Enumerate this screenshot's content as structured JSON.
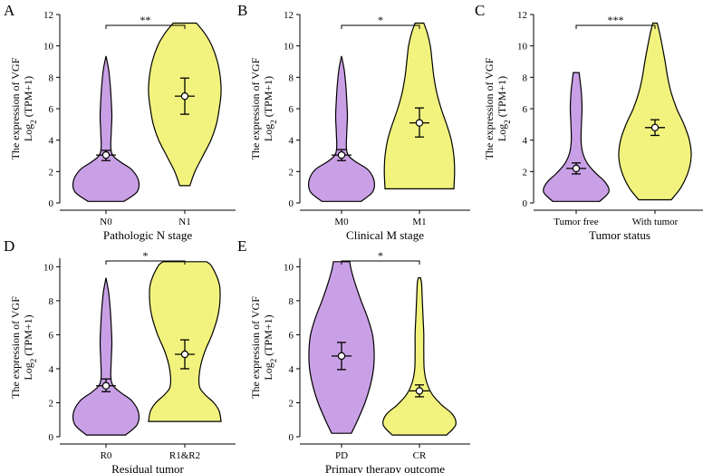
{
  "colors": {
    "group1": "#c9a0e6",
    "group2": "#f2f37e",
    "stroke": "#000000",
    "point": "#ffffff"
  },
  "chart_data": [
    {
      "panel": "A",
      "type": "violin",
      "ylabel_line1": "The expression  of VGF",
      "ylabel_line2_prefix": "Log",
      "ylabel_line2_sub": "2",
      "ylabel_line2_suffix": " (TPM+1)",
      "xlabel": "Pathologic N stage",
      "ylim": [
        0,
        12
      ],
      "yticks": [
        0,
        2,
        4,
        6,
        8,
        10,
        12
      ],
      "significance": "**",
      "groups": [
        {
          "label": "N0",
          "min": 0.1,
          "max": 9.35,
          "mean": 3.05,
          "ci_low": 2.7,
          "ci_high": 3.35,
          "profile": [
            [
              0.1,
              0.55
            ],
            [
              0.7,
              0.95
            ],
            [
              1.4,
              1.0
            ],
            [
              2.1,
              0.8
            ],
            [
              2.6,
              0.45
            ],
            [
              3.0,
              0.22
            ],
            [
              3.5,
              0.15
            ],
            [
              4.5,
              0.16
            ],
            [
              5.5,
              0.18
            ],
            [
              6.5,
              0.16
            ],
            [
              7.5,
              0.13
            ],
            [
              8.5,
              0.08
            ],
            [
              9.35,
              0
            ]
          ]
        },
        {
          "label": "N1",
          "min": 1.1,
          "max": 11.45,
          "mean": 6.8,
          "ci_low": 5.65,
          "ci_high": 7.95,
          "profile": [
            [
              1.1,
              0.14
            ],
            [
              2.0,
              0.28
            ],
            [
              3.0,
              0.5
            ],
            [
              4.0,
              0.72
            ],
            [
              5.0,
              0.87
            ],
            [
              6.0,
              0.95
            ],
            [
              7.0,
              1.0
            ],
            [
              8.0,
              0.98
            ],
            [
              9.0,
              0.9
            ],
            [
              10.0,
              0.75
            ],
            [
              10.8,
              0.55
            ],
            [
              11.45,
              0.32
            ]
          ]
        }
      ]
    },
    {
      "panel": "B",
      "type": "violin",
      "ylabel_line1": "The expression  of VGF",
      "ylabel_line2_prefix": "Log",
      "ylabel_line2_sub": "2",
      "ylabel_line2_suffix": " (TPM+1)",
      "xlabel": "Clinical M stage",
      "ylim": [
        0,
        12
      ],
      "yticks": [
        0,
        2,
        4,
        6,
        8,
        10,
        12
      ],
      "significance": "*",
      "groups": [
        {
          "label": "M0",
          "min": 0.1,
          "max": 9.35,
          "mean": 3.05,
          "ci_low": 2.7,
          "ci_high": 3.4,
          "profile": [
            [
              0.1,
              0.6
            ],
            [
              0.7,
              0.95
            ],
            [
              1.4,
              1.0
            ],
            [
              2.1,
              0.82
            ],
            [
              2.6,
              0.45
            ],
            [
              3.0,
              0.22
            ],
            [
              3.5,
              0.15
            ],
            [
              4.5,
              0.16
            ],
            [
              5.5,
              0.18
            ],
            [
              6.5,
              0.16
            ],
            [
              7.5,
              0.13
            ],
            [
              8.5,
              0.08
            ],
            [
              9.35,
              0
            ]
          ]
        },
        {
          "label": "M1",
          "min": 0.9,
          "max": 11.45,
          "mean": 5.1,
          "ci_low": 4.2,
          "ci_high": 6.05,
          "profile": [
            [
              0.9,
              0.95
            ],
            [
              2.0,
              0.97
            ],
            [
              3.0,
              0.95
            ],
            [
              4.0,
              0.88
            ],
            [
              5.0,
              0.75
            ],
            [
              6.0,
              0.6
            ],
            [
              7.0,
              0.48
            ],
            [
              8.0,
              0.4
            ],
            [
              9.0,
              0.35
            ],
            [
              10.0,
              0.3
            ],
            [
              10.8,
              0.22
            ],
            [
              11.45,
              0.12
            ]
          ]
        }
      ]
    },
    {
      "panel": "C",
      "type": "violin",
      "ylabel_line1": "The expression  of VGF",
      "ylabel_line2_prefix": "Log",
      "ylabel_line2_sub": "2",
      "ylabel_line2_suffix": " (TPM+1)",
      "xlabel": "Tumor status",
      "ylim": [
        0,
        12
      ],
      "yticks": [
        0,
        2,
        4,
        6,
        8,
        10,
        12
      ],
      "significance": "***",
      "groups": [
        {
          "label": "Tumor free",
          "min": 0.1,
          "max": 8.3,
          "mean": 2.2,
          "ci_low": 1.85,
          "ci_high": 2.55,
          "profile": [
            [
              0.1,
              0.72
            ],
            [
              0.7,
              1.0
            ],
            [
              1.3,
              0.9
            ],
            [
              1.9,
              0.6
            ],
            [
              2.5,
              0.35
            ],
            [
              3.2,
              0.2
            ],
            [
              4.0,
              0.15
            ],
            [
              5.0,
              0.16
            ],
            [
              6.0,
              0.18
            ],
            [
              7.0,
              0.16
            ],
            [
              7.8,
              0.12
            ],
            [
              8.3,
              0.09
            ]
          ]
        },
        {
          "label": "With tumor",
          "min": 0.2,
          "max": 11.45,
          "mean": 4.8,
          "ci_low": 4.3,
          "ci_high": 5.3,
          "profile": [
            [
              0.2,
              0.45
            ],
            [
              1.0,
              0.72
            ],
            [
              2.0,
              0.92
            ],
            [
              3.0,
              1.0
            ],
            [
              4.0,
              0.95
            ],
            [
              5.0,
              0.8
            ],
            [
              6.0,
              0.6
            ],
            [
              7.0,
              0.45
            ],
            [
              8.0,
              0.35
            ],
            [
              9.0,
              0.28
            ],
            [
              10.0,
              0.2
            ],
            [
              10.8,
              0.13
            ],
            [
              11.45,
              0.06
            ]
          ]
        }
      ]
    },
    {
      "panel": "D",
      "type": "violin",
      "ylabel_line1": "The expression  of VGF",
      "ylabel_line2_prefix": "Log",
      "ylabel_line2_sub": "2",
      "ylabel_line2_suffix": " (TPM+1)",
      "xlabel": "Residual tumor",
      "ylim": [
        0,
        10.5
      ],
      "yticks": [
        0,
        2,
        4,
        6,
        8,
        10
      ],
      "significance": "*",
      "groups": [
        {
          "label": "R0",
          "min": 0.1,
          "max": 9.35,
          "mean": 3.0,
          "ci_low": 2.65,
          "ci_high": 3.4,
          "profile": [
            [
              0.1,
              0.6
            ],
            [
              0.7,
              0.95
            ],
            [
              1.4,
              1.0
            ],
            [
              2.1,
              0.8
            ],
            [
              2.6,
              0.45
            ],
            [
              3.0,
              0.22
            ],
            [
              3.5,
              0.15
            ],
            [
              4.5,
              0.16
            ],
            [
              5.5,
              0.18
            ],
            [
              6.5,
              0.16
            ],
            [
              7.5,
              0.13
            ],
            [
              8.5,
              0.08
            ],
            [
              9.35,
              0
            ]
          ]
        },
        {
          "label": "R1&R2",
          "min": 0.9,
          "max": 10.3,
          "mean": 4.85,
          "ci_low": 4.0,
          "ci_high": 5.7,
          "profile": [
            [
              0.9,
              1.0
            ],
            [
              1.5,
              0.95
            ],
            [
              2.0,
              0.8
            ],
            [
              2.5,
              0.55
            ],
            [
              3.0,
              0.4
            ],
            [
              4.0,
              0.42
            ],
            [
              5.0,
              0.55
            ],
            [
              6.0,
              0.75
            ],
            [
              7.0,
              0.9
            ],
            [
              8.0,
              0.97
            ],
            [
              9.0,
              0.95
            ],
            [
              10.0,
              0.75
            ],
            [
              10.3,
              0.6
            ]
          ]
        }
      ]
    },
    {
      "panel": "E",
      "type": "violin",
      "ylabel_line1": "The expression  of VGF",
      "ylabel_line2_prefix": "Log",
      "ylabel_line2_sub": "2",
      "ylabel_line2_suffix": " (TPM+1)",
      "xlabel": "Primary therapy outcome",
      "ylim": [
        0,
        10.5
      ],
      "yticks": [
        0,
        2,
        4,
        6,
        8,
        10
      ],
      "significance": "*",
      "groups": [
        {
          "label": "PD",
          "min": 0.2,
          "max": 10.3,
          "mean": 4.75,
          "ci_low": 3.95,
          "ci_high": 5.55,
          "profile": [
            [
              0.2,
              0.3
            ],
            [
              1.0,
              0.5
            ],
            [
              2.0,
              0.72
            ],
            [
              3.0,
              0.88
            ],
            [
              4.0,
              0.98
            ],
            [
              5.0,
              1.0
            ],
            [
              6.0,
              0.95
            ],
            [
              7.0,
              0.8
            ],
            [
              8.0,
              0.6
            ],
            [
              9.0,
              0.42
            ],
            [
              9.8,
              0.3
            ],
            [
              10.3,
              0.25
            ]
          ]
        },
        {
          "label": "CR",
          "min": 0.1,
          "max": 9.35,
          "mean": 2.7,
          "ci_low": 2.35,
          "ci_high": 3.05,
          "profile": [
            [
              0.1,
              0.75
            ],
            [
              0.7,
              1.0
            ],
            [
              1.3,
              0.92
            ],
            [
              1.9,
              0.6
            ],
            [
              2.5,
              0.35
            ],
            [
              3.2,
              0.2
            ],
            [
              4.0,
              0.13
            ],
            [
              5.0,
              0.12
            ],
            [
              6.0,
              0.12
            ],
            [
              7.0,
              0.1
            ],
            [
              8.0,
              0.08
            ],
            [
              9.0,
              0.06
            ],
            [
              9.35,
              0.03
            ]
          ]
        }
      ]
    }
  ]
}
